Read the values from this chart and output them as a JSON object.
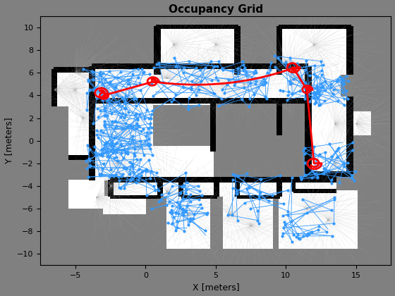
{
  "title": "Occupancy Grid",
  "xlabel": "X [meters]",
  "ylabel": "Y [meters]",
  "xlim": [
    -7.5,
    17.5
  ],
  "ylim": [
    -11,
    11
  ],
  "bg_color": "#808080",
  "scan_color_dark": "#888888",
  "scan_color_light": "#d0d0d0",
  "traj_color": "#3399ff",
  "path_color": "#ff0000",
  "wall_color": "#101010",
  "free_color": "#f0f0f0",
  "seed": 42,
  "title_fontsize": 11,
  "label_fontsize": 9,
  "tick_fontsize": 8
}
